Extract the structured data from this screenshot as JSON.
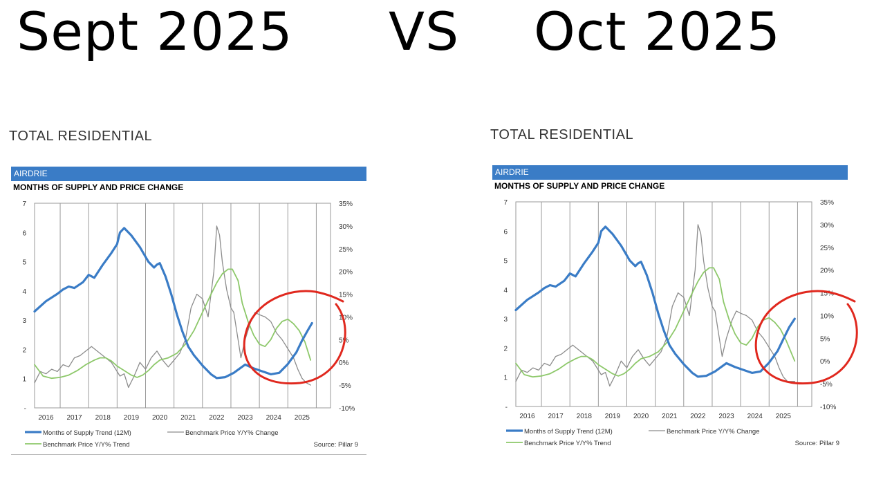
{
  "headline": {
    "left": "Sept 2025",
    "vs": "VS",
    "right": "Oct 2025"
  },
  "colors": {
    "market_bar": "#3a7cc6",
    "supply_line": "#3a7cc6",
    "price_change_line": "#8c8c8c",
    "price_trend_line": "#8dc86a",
    "annotation_circle": "#e0281e",
    "gridline": "#9a9a9a"
  },
  "panels": [
    {
      "section_title": "TOTAL RESIDENTIAL",
      "market_label": "AIRDRIE",
      "chart_heading": "MONTHS OF SUPPLY AND PRICE CHANGE",
      "legend": {
        "supply": "Months of Supply Trend (12M)",
        "price_change": "Benchmark Price Y/Y% Change",
        "price_trend": "Benchmark Price Y/Y% Trend"
      },
      "source": "Source: Pillar 9"
    },
    {
      "section_title": "TOTAL RESIDENTIAL",
      "market_label": "AIRDRIE",
      "chart_heading": "MONTHS OF SUPPLY AND PRICE CHANGE",
      "legend": {
        "supply": "Months of Supply Trend (12M)",
        "price_change": "Benchmark Price Y/Y% Change",
        "price_trend": "Benchmark Price Y/Y% Trend"
      },
      "source": "Source: Pillar 9"
    }
  ],
  "chart_data": [
    {
      "type": "line",
      "title": "MONTHS OF SUPPLY AND PRICE CHANGE",
      "x_tick_labels": [
        "2016",
        "2017",
        "2018",
        "2019",
        "2020",
        "2021",
        "2022",
        "2023",
        "2024",
        "2025"
      ],
      "xlim": [
        2015.6,
        2026.0
      ],
      "y_left": {
        "ticks": [
          "7",
          "6",
          "5",
          "4",
          "3",
          "2",
          "1",
          "-"
        ],
        "ylim": [
          0,
          7
        ]
      },
      "y_right": {
        "ticks": [
          "35%",
          "30%",
          "25%",
          "20%",
          "15%",
          "10%",
          "5%",
          "0%",
          "-5%",
          "-10%"
        ],
        "ylim": [
          -10,
          35
        ]
      },
      "grid": "vertical",
      "series": [
        {
          "name": "Months of Supply Trend (12M)",
          "axis": "left",
          "style": "thick",
          "x": [
            2015.6,
            2016.0,
            2016.4,
            2016.6,
            2016.8,
            2017.0,
            2017.3,
            2017.5,
            2017.7,
            2018.0,
            2018.3,
            2018.5,
            2018.6,
            2018.75,
            2019.0,
            2019.3,
            2019.6,
            2019.8,
            2019.9,
            2020.0,
            2020.2,
            2020.4,
            2020.6,
            2020.8,
            2021.0,
            2021.2,
            2021.5,
            2021.8,
            2022.0,
            2022.3,
            2022.6,
            2023.0,
            2023.3,
            2023.6,
            2023.9,
            2024.2,
            2024.5,
            2024.8,
            2025.0,
            2025.2,
            2025.35
          ],
          "y": [
            3.3,
            3.65,
            3.9,
            4.05,
            4.15,
            4.1,
            4.3,
            4.55,
            4.45,
            4.9,
            5.3,
            5.6,
            6.0,
            6.15,
            5.9,
            5.5,
            5.0,
            4.8,
            4.9,
            4.95,
            4.5,
            3.9,
            3.2,
            2.6,
            2.1,
            1.8,
            1.45,
            1.15,
            1.02,
            1.05,
            1.2,
            1.48,
            1.35,
            1.25,
            1.15,
            1.2,
            1.5,
            1.9,
            2.3,
            2.65,
            2.9
          ]
        },
        {
          "name": "Benchmark Price Y/Y% Change",
          "axis": "right",
          "style": "thin",
          "x": [
            2015.6,
            2015.8,
            2016.0,
            2016.2,
            2016.4,
            2016.6,
            2016.8,
            2017.0,
            2017.2,
            2017.4,
            2017.6,
            2017.8,
            2018.0,
            2018.3,
            2018.6,
            2018.75,
            2018.9,
            2019.1,
            2019.3,
            2019.5,
            2019.7,
            2019.9,
            2020.1,
            2020.3,
            2020.5,
            2020.7,
            2020.9,
            2021.1,
            2021.3,
            2021.5,
            2021.7,
            2021.9,
            2022.0,
            2022.1,
            2022.2,
            2022.35,
            2022.5,
            2022.6,
            2022.75,
            2022.85,
            2023.0,
            2023.2,
            2023.35,
            2023.5,
            2023.7,
            2023.9,
            2024.1,
            2024.3,
            2024.5,
            2024.7,
            2024.85,
            2025.0,
            2025.15,
            2025.3
          ],
          "y": [
            -4.5,
            -2.0,
            -2.5,
            -1.5,
            -2.0,
            -0.5,
            -1.0,
            1.0,
            1.5,
            2.5,
            3.5,
            2.5,
            1.5,
            0.0,
            -3.0,
            -2.5,
            -5.5,
            -3.0,
            0.0,
            -1.5,
            1.0,
            2.5,
            0.5,
            -1.0,
            0.5,
            2.0,
            5.0,
            12.0,
            15.0,
            14.0,
            10.0,
            20.0,
            30.0,
            28.0,
            22.0,
            16.0,
            12.0,
            11.0,
            5.0,
            1.0,
            5.0,
            9.0,
            11.0,
            10.5,
            10.0,
            9.0,
            6.5,
            5.0,
            3.0,
            1.0,
            -1.5,
            -3.5,
            -4.5,
            -5.0
          ]
        },
        {
          "name": "Benchmark Price Y/Y% Trend",
          "axis": "right",
          "style": "medium",
          "x": [
            2015.6,
            2015.9,
            2016.2,
            2016.5,
            2016.8,
            2017.1,
            2017.4,
            2017.7,
            2017.9,
            2018.1,
            2018.3,
            2018.5,
            2018.8,
            2019.0,
            2019.2,
            2019.4,
            2019.6,
            2019.8,
            2020.0,
            2020.3,
            2020.6,
            2020.9,
            2021.2,
            2021.5,
            2021.8,
            2022.0,
            2022.2,
            2022.4,
            2022.55,
            2022.75,
            2022.9,
            2023.1,
            2023.3,
            2023.5,
            2023.7,
            2023.9,
            2024.1,
            2024.3,
            2024.5,
            2024.7,
            2024.9,
            2025.1,
            2025.3
          ],
          "y": [
            -0.5,
            -3.0,
            -3.5,
            -3.3,
            -2.8,
            -1.8,
            -0.5,
            0.5,
            1.0,
            1.0,
            0.3,
            -0.8,
            -2.0,
            -2.8,
            -3.3,
            -2.8,
            -1.8,
            -0.5,
            0.5,
            1.0,
            2.0,
            4.0,
            7.0,
            11.0,
            15.0,
            17.5,
            19.5,
            20.5,
            20.5,
            18.0,
            13.0,
            9.0,
            6.0,
            4.0,
            3.5,
            5.0,
            7.5,
            9.0,
            9.5,
            8.5,
            7.0,
            4.5,
            0.5
          ]
        }
      ]
    },
    {
      "type": "line",
      "title": "MONTHS OF SUPPLY AND PRICE CHANGE",
      "x_tick_labels": [
        "2016",
        "2017",
        "2018",
        "2019",
        "2020",
        "2021",
        "2022",
        "2023",
        "2024",
        "2025"
      ],
      "xlim": [
        2015.6,
        2026.0
      ],
      "y_left": {
        "ticks": [
          "7",
          "6",
          "5",
          "4",
          "3",
          "2",
          "1",
          "-"
        ],
        "ylim": [
          0,
          7
        ]
      },
      "y_right": {
        "ticks": [
          "35%",
          "30%",
          "25%",
          "20%",
          "15%",
          "10%",
          "5%",
          "0%",
          "-5%",
          "-10%"
        ],
        "ylim": [
          -10,
          35
        ]
      },
      "grid": "vertical",
      "series": [
        {
          "name": "Months of Supply Trend (12M)",
          "axis": "left",
          "style": "thick",
          "x": [
            2015.6,
            2016.0,
            2016.4,
            2016.6,
            2016.8,
            2017.0,
            2017.3,
            2017.5,
            2017.7,
            2018.0,
            2018.3,
            2018.5,
            2018.6,
            2018.75,
            2019.0,
            2019.3,
            2019.6,
            2019.8,
            2019.9,
            2020.0,
            2020.2,
            2020.4,
            2020.6,
            2020.8,
            2021.0,
            2021.2,
            2021.5,
            2021.8,
            2022.0,
            2022.3,
            2022.6,
            2023.0,
            2023.3,
            2023.6,
            2023.9,
            2024.2,
            2024.5,
            2024.8,
            2025.0,
            2025.2,
            2025.4
          ],
          "y": [
            3.3,
            3.65,
            3.9,
            4.05,
            4.15,
            4.1,
            4.3,
            4.55,
            4.45,
            4.9,
            5.3,
            5.6,
            6.0,
            6.15,
            5.9,
            5.5,
            5.0,
            4.8,
            4.9,
            4.95,
            4.5,
            3.9,
            3.2,
            2.6,
            2.1,
            1.8,
            1.45,
            1.15,
            1.02,
            1.05,
            1.2,
            1.48,
            1.35,
            1.25,
            1.15,
            1.2,
            1.5,
            1.9,
            2.3,
            2.7,
            3.0
          ]
        },
        {
          "name": "Benchmark Price Y/Y% Change",
          "axis": "right",
          "style": "thin",
          "x": [
            2015.6,
            2015.8,
            2016.0,
            2016.2,
            2016.4,
            2016.6,
            2016.8,
            2017.0,
            2017.2,
            2017.4,
            2017.6,
            2017.8,
            2018.0,
            2018.3,
            2018.6,
            2018.75,
            2018.9,
            2019.1,
            2019.3,
            2019.5,
            2019.7,
            2019.9,
            2020.1,
            2020.3,
            2020.5,
            2020.7,
            2020.9,
            2021.1,
            2021.3,
            2021.5,
            2021.7,
            2021.9,
            2022.0,
            2022.1,
            2022.2,
            2022.35,
            2022.5,
            2022.6,
            2022.75,
            2022.85,
            2023.0,
            2023.2,
            2023.35,
            2023.5,
            2023.7,
            2023.9,
            2024.1,
            2024.3,
            2024.5,
            2024.7,
            2024.85,
            2025.0,
            2025.15,
            2025.4
          ],
          "y": [
            -4.5,
            -2.0,
            -2.5,
            -1.5,
            -2.0,
            -0.5,
            -1.0,
            1.0,
            1.5,
            2.5,
            3.5,
            2.5,
            1.5,
            0.0,
            -3.0,
            -2.5,
            -5.5,
            -3.0,
            0.0,
            -1.5,
            1.0,
            2.5,
            0.5,
            -1.0,
            0.5,
            2.0,
            5.0,
            12.0,
            15.0,
            14.0,
            10.0,
            20.0,
            30.0,
            28.0,
            22.0,
            16.0,
            12.0,
            11.0,
            5.0,
            1.0,
            5.0,
            9.0,
            11.0,
            10.5,
            10.0,
            9.0,
            6.5,
            5.0,
            3.0,
            1.0,
            -1.5,
            -3.5,
            -4.5,
            -4.5
          ]
        },
        {
          "name": "Benchmark Price Y/Y% Trend",
          "axis": "right",
          "style": "medium",
          "x": [
            2015.6,
            2015.9,
            2016.2,
            2016.5,
            2016.8,
            2017.1,
            2017.4,
            2017.7,
            2017.9,
            2018.1,
            2018.3,
            2018.5,
            2018.8,
            2019.0,
            2019.2,
            2019.4,
            2019.6,
            2019.8,
            2020.0,
            2020.3,
            2020.6,
            2020.9,
            2021.2,
            2021.5,
            2021.8,
            2022.0,
            2022.2,
            2022.4,
            2022.55,
            2022.75,
            2022.9,
            2023.1,
            2023.3,
            2023.5,
            2023.7,
            2023.9,
            2024.1,
            2024.3,
            2024.5,
            2024.7,
            2024.9,
            2025.1,
            2025.4
          ],
          "y": [
            -0.5,
            -3.0,
            -3.5,
            -3.3,
            -2.8,
            -1.8,
            -0.5,
            0.5,
            1.0,
            1.0,
            0.3,
            -0.8,
            -2.0,
            -2.8,
            -3.3,
            -2.8,
            -1.8,
            -0.5,
            0.5,
            1.0,
            2.0,
            4.0,
            7.0,
            11.0,
            15.0,
            17.5,
            19.5,
            20.5,
            20.5,
            18.0,
            13.0,
            9.0,
            6.0,
            4.0,
            3.5,
            5.0,
            7.5,
            9.0,
            9.5,
            8.5,
            7.0,
            4.5,
            0.0
          ]
        }
      ]
    }
  ]
}
